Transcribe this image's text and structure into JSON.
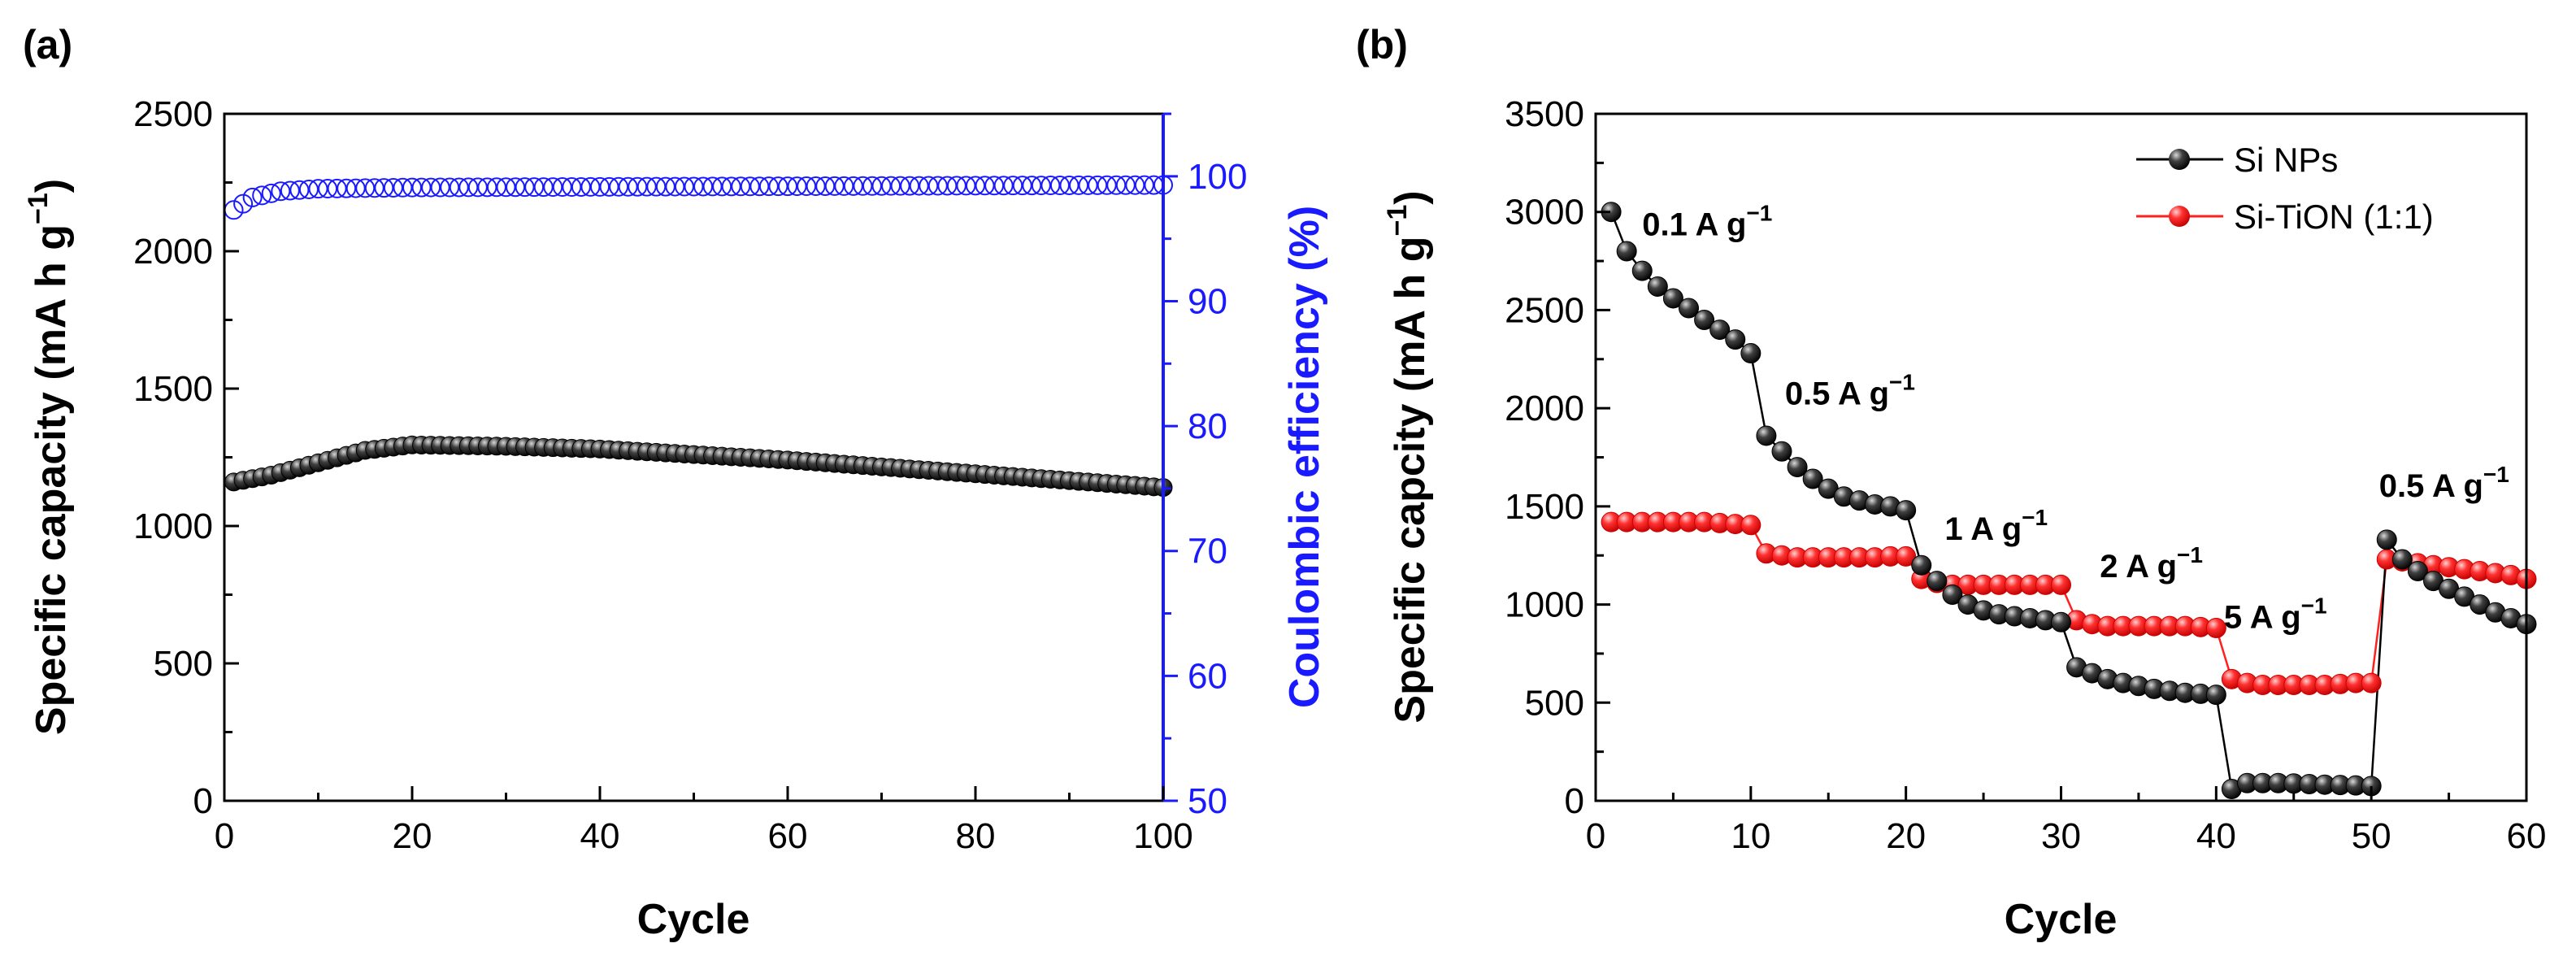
{
  "colors": {
    "axis": "#000000",
    "blue": "#1a1aff",
    "black_marker": "#1a1a1a",
    "red": "#ff2020"
  },
  "chart_data": [
    {
      "type": "scatter",
      "panel_label": "(a)",
      "xlabel": "Cycle",
      "ylabel": "Specific capacity (mA h g",
      "ylabel_sup": "−1",
      "ylabel_end": ")",
      "y2label": "Coulombic efficiency (%)",
      "xlim": [
        0,
        100
      ],
      "ylim": [
        0,
        2500
      ],
      "y2lim": [
        50,
        105
      ],
      "x_ticks": [
        "0",
        "20",
        "40",
        "60",
        "80",
        "100"
      ],
      "y_ticks": [
        "0",
        "500",
        "1000",
        "1500",
        "2000",
        "2500"
      ],
      "y2_ticks": [
        "50",
        "60",
        "70",
        "80",
        "90",
        "100"
      ],
      "capacity_anchors": [
        [
          1,
          1160
        ],
        [
          5,
          1185
        ],
        [
          10,
          1230
        ],
        [
          15,
          1275
        ],
        [
          20,
          1295
        ],
        [
          30,
          1290
        ],
        [
          40,
          1280
        ],
        [
          60,
          1240
        ],
        [
          80,
          1190
        ],
        [
          100,
          1140
        ]
      ],
      "efficiency_anchors": [
        [
          1,
          97.3
        ],
        [
          3,
          98.3
        ],
        [
          6,
          98.8
        ],
        [
          10,
          99.0
        ],
        [
          20,
          99.1
        ],
        [
          100,
          99.3
        ]
      ]
    },
    {
      "type": "scatter",
      "panel_label": "(b)",
      "xlabel": "Cycle",
      "ylabel": "Specific capcity (mA h g",
      "ylabel_sup": "−1",
      "ylabel_end": ")",
      "xlim": [
        0,
        60
      ],
      "ylim": [
        0,
        3500
      ],
      "x_ticks": [
        "0",
        "10",
        "20",
        "30",
        "40",
        "50",
        "60"
      ],
      "y_ticks": [
        "0",
        "500",
        "1000",
        "1500",
        "2000",
        "2500",
        "3000",
        "3500"
      ],
      "legend": [
        "Si NPs",
        "Si-TiON (1:1)"
      ],
      "annotations": [
        {
          "text": "0.1 A g",
          "x": 3,
          "y": 2880
        },
        {
          "text": "0.5 A g",
          "x": 12.2,
          "y": 2020
        },
        {
          "text": "1 A g",
          "x": 22.5,
          "y": 1330
        },
        {
          "text": "2 A g",
          "x": 32.5,
          "y": 1140
        },
        {
          "text": "5 A g",
          "x": 40.5,
          "y": 880
        },
        {
          "text": "0.5 A g",
          "x": 50.5,
          "y": 1550
        }
      ],
      "annotation_sup": "−1",
      "series": [
        {
          "name": "Si NPs",
          "values": [
            3000,
            2800,
            2700,
            2620,
            2560,
            2510,
            2450,
            2400,
            2350,
            2280,
            1860,
            1780,
            1700,
            1640,
            1590,
            1550,
            1530,
            1510,
            1500,
            1480,
            1200,
            1120,
            1050,
            1000,
            970,
            950,
            940,
            930,
            920,
            910,
            680,
            650,
            620,
            600,
            585,
            570,
            560,
            550,
            545,
            540,
            60,
            90,
            90,
            90,
            88,
            85,
            82,
            80,
            78,
            75,
            1330,
            1230,
            1170,
            1120,
            1080,
            1040,
            1000,
            960,
            930,
            900
          ]
        },
        {
          "name": "Si-TiON (1:1)",
          "values": [
            1420,
            1420,
            1420,
            1420,
            1420,
            1420,
            1420,
            1415,
            1410,
            1405,
            1260,
            1250,
            1240,
            1240,
            1240,
            1240,
            1240,
            1240,
            1245,
            1245,
            1130,
            1110,
            1100,
            1100,
            1100,
            1100,
            1100,
            1100,
            1100,
            1100,
            920,
            900,
            890,
            890,
            890,
            890,
            890,
            890,
            885,
            880,
            620,
            600,
            590,
            590,
            590,
            590,
            590,
            595,
            600,
            600,
            1230,
            1220,
            1210,
            1200,
            1190,
            1180,
            1170,
            1160,
            1150,
            1130
          ]
        }
      ]
    }
  ]
}
